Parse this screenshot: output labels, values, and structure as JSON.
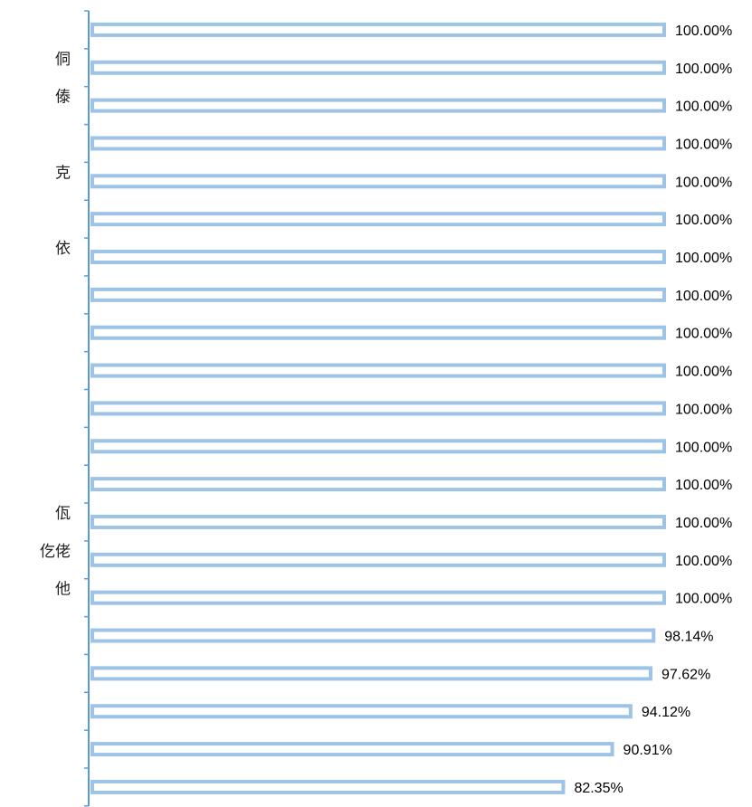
{
  "chart_data": {
    "type": "bar",
    "orientation": "horizontal",
    "categories": [
      "",
      "侗",
      "傣",
      "",
      "克",
      "",
      "依",
      "",
      "",
      "",
      "",
      "",
      "",
      "佤",
      "仡佬",
      "他",
      "",
      "",
      "",
      "",
      ""
    ],
    "values": [
      100.0,
      100.0,
      100.0,
      100.0,
      100.0,
      100.0,
      100.0,
      100.0,
      100.0,
      100.0,
      100.0,
      100.0,
      100.0,
      100.0,
      100.0,
      100.0,
      98.14,
      97.62,
      94.12,
      90.91,
      82.35
    ],
    "value_labels": [
      "100.00%",
      "100.00%",
      "100.00%",
      "100.00%",
      "100.00%",
      "100.00%",
      "100.00%",
      "100.00%",
      "100.00%",
      "100.00%",
      "100.00%",
      "100.00%",
      "100.00%",
      "100.00%",
      "100.00%",
      "100.00%",
      "98.14%",
      "97.62%",
      "94.12%",
      "90.91%",
      "82.35%"
    ],
    "xlim": [
      0,
      100
    ],
    "title": "",
    "xlabel": "",
    "ylabel": "",
    "grid": false,
    "legend": "none",
    "colors": {
      "bar_outline": "#9dc3e6",
      "bar_fill": "#ffffff",
      "axis": "#5b9bd5"
    }
  }
}
